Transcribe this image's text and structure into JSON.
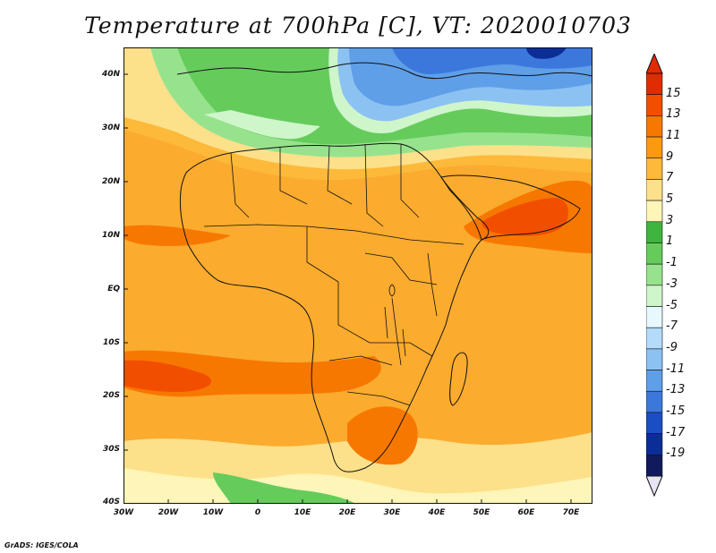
{
  "title": "Temperature at 700hPa [C], VT: 2020010703",
  "credit": "GrADS: IGES/COLA",
  "lat_labels": [
    "40N",
    "30N",
    "20N",
    "10N",
    "EQ",
    "10S",
    "20S",
    "30S",
    "40S"
  ],
  "lon_labels": [
    "30W",
    "20W",
    "10W",
    "0",
    "10E",
    "20E",
    "30E",
    "40E",
    "50E",
    "60E",
    "70E"
  ],
  "colorbar": {
    "labels": [
      "15",
      "13",
      "11",
      "9",
      "7",
      "5",
      "3",
      "1",
      "-1",
      "-3",
      "-5",
      "-7",
      "-9",
      "-11",
      "-13",
      "-15",
      "-17",
      "-19"
    ],
    "colors": [
      "#e12b00",
      "#f24e00",
      "#f77800",
      "#fb9a10",
      "#fdb93a",
      "#fde08a",
      "#fef5b8",
      "#3fb43f",
      "#65cc5c",
      "#97e38d",
      "#cff5cb",
      "#e8f8ff",
      "#b4dcfa",
      "#8cc2f2",
      "#5f9fe8",
      "#3c78dc",
      "#1b4ec4",
      "#0b2e96",
      "#101a5c"
    ]
  }
}
